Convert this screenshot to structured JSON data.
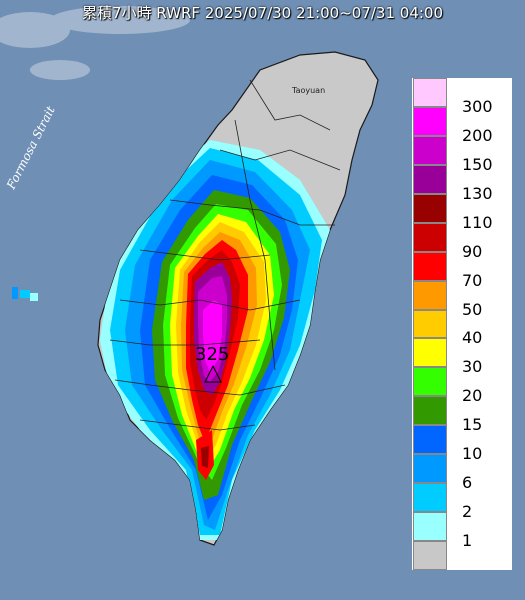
{
  "title": "累積7小時 RWRF 2025/07/30 21:00~07/31 04:00",
  "map_labels": {
    "strait": "Formosa Strait",
    "city": "Taoyuan",
    "max_value": "325"
  },
  "legend": {
    "levels": [
      {
        "label": "300",
        "color": "#ffc8ff"
      },
      {
        "label": "200",
        "color": "#ff00ff"
      },
      {
        "label": "150",
        "color": "#cc00cc"
      },
      {
        "label": "130",
        "color": "#990099"
      },
      {
        "label": "110",
        "color": "#990000"
      },
      {
        "label": "90",
        "color": "#cc0000"
      },
      {
        "label": "70",
        "color": "#ff0000"
      },
      {
        "label": "50",
        "color": "#ff9900"
      },
      {
        "label": "40",
        "color": "#ffcc00"
      },
      {
        "label": "30",
        "color": "#ffff00"
      },
      {
        "label": "20",
        "color": "#33ff00"
      },
      {
        "label": "15",
        "color": "#339900"
      },
      {
        "label": "10",
        "color": "#0066ff"
      },
      {
        "label": "6",
        "color": "#0099ff"
      },
      {
        "label": "2",
        "color": "#00ccff"
      },
      {
        "label": "1",
        "color": "#99ffff"
      },
      {
        "label": "",
        "color": "#c8c8c8"
      }
    ]
  },
  "colors": {
    "sea": "#6f8fb4",
    "land": "#c9c9c9",
    "border": "#1a1a1a"
  }
}
